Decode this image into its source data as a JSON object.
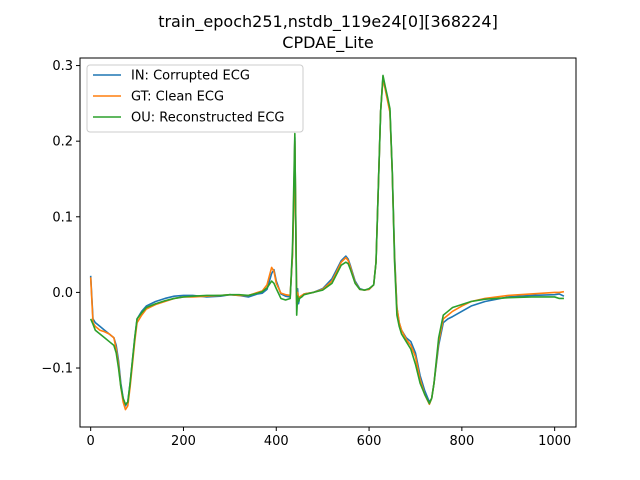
{
  "chart_data": {
    "type": "line",
    "title": "train_epoch251,nstdb_119e24[0][368224]",
    "subtitle": "CPDAE_Lite",
    "xlabel": "",
    "ylabel": "",
    "xlim": [
      -23,
      1046
    ],
    "ylim": [
      -0.178,
      0.31
    ],
    "x_ticks": [
      0,
      200,
      400,
      600,
      800,
      1000
    ],
    "y_ticks": [
      -0.1,
      0.0,
      0.1,
      0.2,
      0.3
    ],
    "x_tick_labels": [
      "0",
      "200",
      "400",
      "600",
      "800",
      "1000"
    ],
    "y_tick_labels": [
      "−0.1",
      "0.0",
      "0.1",
      "0.2",
      "0.3"
    ],
    "grid": false,
    "legend_position": "top-left",
    "x": [
      0,
      5,
      10,
      20,
      30,
      40,
      50,
      55,
      60,
      65,
      70,
      75,
      80,
      85,
      90,
      95,
      100,
      110,
      120,
      140,
      160,
      180,
      200,
      220,
      250,
      280,
      300,
      320,
      340,
      360,
      370,
      380,
      390,
      395,
      400,
      410,
      420,
      430,
      435,
      438,
      440,
      442,
      444,
      446,
      448,
      450,
      455,
      460,
      480,
      500,
      520,
      530,
      540,
      550,
      555,
      560,
      570,
      580,
      590,
      600,
      610,
      615,
      620,
      625,
      630,
      635,
      640,
      645,
      650,
      655,
      660,
      665,
      670,
      680,
      690,
      700,
      710,
      720,
      730,
      735,
      740,
      750,
      760,
      770,
      780,
      800,
      820,
      850,
      900,
      950,
      1000,
      1010,
      1020
    ],
    "series": [
      {
        "name": "IN: Corrupted ECG",
        "color": "#1f77b4",
        "values": [
          0.022,
          -0.035,
          -0.04,
          -0.045,
          -0.05,
          -0.055,
          -0.06,
          -0.07,
          -0.09,
          -0.12,
          -0.14,
          -0.15,
          -0.145,
          -0.12,
          -0.09,
          -0.06,
          -0.035,
          -0.025,
          -0.018,
          -0.012,
          -0.008,
          -0.005,
          -0.004,
          -0.004,
          -0.006,
          -0.005,
          -0.003,
          -0.004,
          -0.006,
          -0.002,
          -0.001,
          0.004,
          0.025,
          0.03,
          0.015,
          -0.002,
          -0.005,
          -0.006,
          0.05,
          0.13,
          0.205,
          0.1,
          -0.01,
          0.005,
          -0.015,
          -0.008,
          -0.005,
          -0.002,
          0.0,
          0.005,
          0.018,
          0.03,
          0.042,
          0.048,
          0.044,
          0.035,
          0.015,
          0.005,
          0.003,
          0.004,
          0.01,
          0.04,
          0.14,
          0.24,
          0.285,
          0.27,
          0.255,
          0.24,
          0.16,
          0.05,
          -0.02,
          -0.04,
          -0.05,
          -0.06,
          -0.065,
          -0.08,
          -0.11,
          -0.13,
          -0.145,
          -0.14,
          -0.12,
          -0.07,
          -0.04,
          -0.035,
          -0.032,
          -0.025,
          -0.018,
          -0.012,
          -0.006,
          -0.004,
          -0.003,
          -0.002,
          -0.005
        ]
      },
      {
        "name": "GT: Clean ECG",
        "color": "#ff7f0e",
        "values": [
          0.02,
          -0.04,
          -0.045,
          -0.05,
          -0.052,
          -0.055,
          -0.06,
          -0.075,
          -0.095,
          -0.125,
          -0.145,
          -0.155,
          -0.15,
          -0.125,
          -0.095,
          -0.065,
          -0.04,
          -0.03,
          -0.022,
          -0.016,
          -0.012,
          -0.008,
          -0.006,
          -0.006,
          -0.005,
          -0.004,
          -0.003,
          -0.004,
          -0.004,
          0.0,
          0.002,
          0.01,
          0.033,
          0.028,
          0.012,
          -0.001,
          -0.003,
          -0.004,
          0.05,
          0.12,
          0.2,
          0.1,
          -0.015,
          0.0,
          -0.008,
          -0.006,
          -0.004,
          -0.002,
          0.0,
          0.004,
          0.015,
          0.027,
          0.04,
          0.046,
          0.042,
          0.033,
          0.013,
          0.004,
          0.003,
          0.004,
          0.01,
          0.04,
          0.14,
          0.24,
          0.283,
          0.268,
          0.253,
          0.238,
          0.158,
          0.045,
          -0.02,
          -0.04,
          -0.05,
          -0.062,
          -0.07,
          -0.085,
          -0.115,
          -0.135,
          -0.148,
          -0.14,
          -0.12,
          -0.065,
          -0.035,
          -0.03,
          -0.025,
          -0.018,
          -0.012,
          -0.008,
          -0.004,
          -0.002,
          0.0,
          0.0,
          0.001
        ]
      },
      {
        "name": "OU: Reconstructed ECG",
        "color": "#2ca02c",
        "values": [
          -0.035,
          -0.042,
          -0.05,
          -0.055,
          -0.06,
          -0.065,
          -0.07,
          -0.08,
          -0.1,
          -0.125,
          -0.14,
          -0.148,
          -0.145,
          -0.12,
          -0.09,
          -0.06,
          -0.035,
          -0.027,
          -0.02,
          -0.015,
          -0.011,
          -0.008,
          -0.006,
          -0.005,
          -0.004,
          -0.004,
          -0.003,
          -0.003,
          -0.004,
          -0.001,
          0.001,
          0.006,
          0.015,
          0.012,
          0.005,
          -0.008,
          -0.01,
          -0.008,
          0.06,
          0.15,
          0.21,
          0.09,
          -0.03,
          -0.005,
          -0.012,
          -0.008,
          -0.006,
          -0.003,
          0.0,
          0.003,
          0.012,
          0.024,
          0.036,
          0.04,
          0.038,
          0.03,
          0.012,
          0.004,
          0.003,
          0.005,
          0.01,
          0.04,
          0.14,
          0.24,
          0.287,
          0.272,
          0.258,
          0.243,
          0.16,
          0.04,
          -0.03,
          -0.045,
          -0.055,
          -0.065,
          -0.075,
          -0.095,
          -0.12,
          -0.135,
          -0.147,
          -0.14,
          -0.12,
          -0.06,
          -0.03,
          -0.025,
          -0.02,
          -0.016,
          -0.012,
          -0.009,
          -0.007,
          -0.006,
          -0.006,
          -0.008,
          -0.008
        ]
      }
    ]
  }
}
